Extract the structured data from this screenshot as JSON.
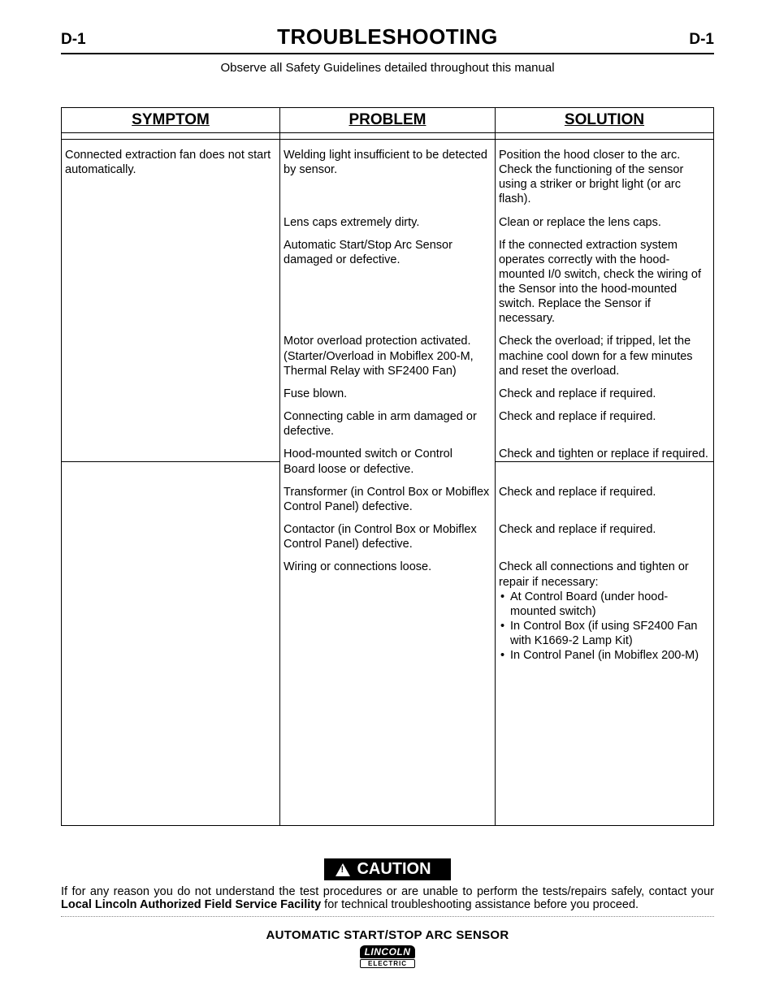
{
  "header": {
    "page_num_left": "D-1",
    "title": "TROUBLESHOOTING",
    "page_num_right": "D-1",
    "subhead": "Observe all Safety Guidelines detailed throughout this manual"
  },
  "columns": {
    "symptom": "SYMPTOM",
    "problem": "PROBLEM",
    "solution": "SOLUTION"
  },
  "symptom": "Connected extraction fan does not start automatically.",
  "rows": [
    {
      "problem": "Welding light insufficient to be detected by sensor.",
      "solution": "Position the hood closer to the arc. Check the functioning of the sensor using a striker or bright light (or arc flash)."
    },
    {
      "problem": "Lens caps extremely dirty.",
      "solution": "Clean or replace the lens caps."
    },
    {
      "problem": "Automatic Start/Stop Arc Sensor damaged or defective.",
      "solution": "If the connected extraction system operates correctly with the hood-mounted I/0 switch, check the wiring of the Sensor into the hood-mounted switch. Replace the Sensor if necessary."
    },
    {
      "problem": "Motor overload protection activated. (Starter/Overload in Mobiflex 200-M, Thermal Relay with SF2400 Fan)",
      "solution": "Check the overload; if tripped, let the machine cool down for a few minutes and reset the overload."
    },
    {
      "problem": "Fuse blown.",
      "solution": "Check and replace if required."
    },
    {
      "problem": "Connecting cable in arm damaged or defective.",
      "solution": "Check and replace if required."
    },
    {
      "problem_a": "Hood-mounted switch or Control",
      "problem_b": "Board loose or defective.",
      "solution": "Check and tighten or replace if required.",
      "midrule": true
    },
    {
      "problem": "Transformer (in Control Box or Mobiflex Control Panel) defective.",
      "solution": "Check and replace if required."
    },
    {
      "problem": "Contactor (in Control Box or Mobiflex Control Panel) defective.",
      "solution": "Check and replace if required."
    },
    {
      "problem": "Wiring or connections loose.",
      "solution_list": [
        "Check all connections and tighten or repair if necessary:",
        "At Control Board (under hood-mounted switch)",
        "In Control Box (if using SF2400 Fan with K1669-2 Lamp Kit)",
        "In Control Panel (in Mobiflex 200-M)"
      ]
    }
  ],
  "caution": {
    "label": "CAUTION",
    "text_pre": "If for any reason you do not understand the test procedures or are unable to perform the tests/repairs safely, contact your ",
    "bold": "Local  Lincoln Authorized Field Service Facility",
    "text_post": " for technical troubleshooting assistance before you proceed."
  },
  "footer": {
    "title": "AUTOMATIC START/STOP ARC SENSOR",
    "logo_top": "LINCOLN",
    "logo_bot": "ELECTRIC"
  }
}
